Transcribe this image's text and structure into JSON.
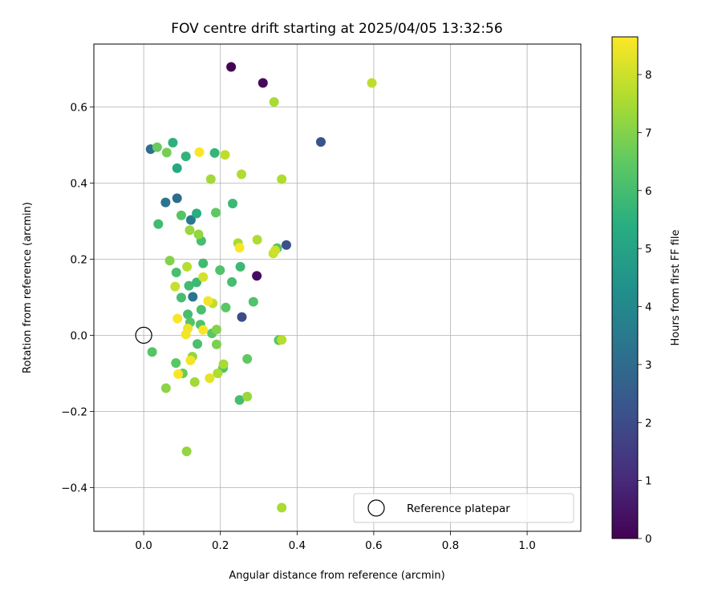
{
  "chart_data": {
    "type": "scatter",
    "title": "FOV centre drift starting at 2025/04/05 13:32:56",
    "xlabel": "Angular distance from reference (arcmin)",
    "ylabel": "Rotation from reference (arcmin)",
    "xlim": [
      -0.13,
      1.14
    ],
    "ylim": [
      -0.515,
      0.765
    ],
    "xticks": [
      0.0,
      0.2,
      0.4,
      0.6,
      0.8,
      1.0
    ],
    "xtick_labels": [
      "0.0",
      "0.2",
      "0.4",
      "0.6",
      "0.8",
      "1.0"
    ],
    "yticks": [
      -0.4,
      -0.2,
      0.0,
      0.2,
      0.4,
      0.6
    ],
    "ytick_labels": [
      "−0.4",
      "−0.2",
      "0.0",
      "0.2",
      "0.4",
      "0.6"
    ],
    "grid": true,
    "colorbar": {
      "label": "Hours from first FF file",
      "colormap": "viridis",
      "range": [
        0,
        8.65
      ],
      "ticks": [
        0,
        1,
        2,
        3,
        4,
        5,
        6,
        7,
        8
      ],
      "tick_labels": [
        "0",
        "1",
        "2",
        "3",
        "4",
        "5",
        "6",
        "7",
        "8"
      ]
    },
    "legend": {
      "placement": "lower-right",
      "entries": [
        {
          "label": "Reference platepar",
          "marker": "hollow-circle"
        }
      ]
    },
    "reference_point": {
      "x": 0.0,
      "y": 0.0
    },
    "points": [
      {
        "x": 0.228,
        "y": 0.705,
        "hours": 0.0
      },
      {
        "x": 0.311,
        "y": 0.663,
        "hours": 0.2
      },
      {
        "x": 0.295,
        "y": 0.156,
        "hours": 0.3
      },
      {
        "x": 0.462,
        "y": 0.508,
        "hours": 2.2
      },
      {
        "x": 0.372,
        "y": 0.237,
        "hours": 2.1
      },
      {
        "x": 0.256,
        "y": 0.048,
        "hours": 2.0
      },
      {
        "x": 0.018,
        "y": 0.489,
        "hours": 3.1
      },
      {
        "x": 0.057,
        "y": 0.349,
        "hours": 3.3
      },
      {
        "x": 0.087,
        "y": 0.36,
        "hours": 3.0
      },
      {
        "x": 0.123,
        "y": 0.303,
        "hours": 3.5
      },
      {
        "x": 0.128,
        "y": 0.101,
        "hours": 3.4
      },
      {
        "x": 0.076,
        "y": 0.506,
        "hours": 5.5
      },
      {
        "x": 0.087,
        "y": 0.439,
        "hours": 5.2
      },
      {
        "x": 0.11,
        "y": 0.47,
        "hours": 5.6
      },
      {
        "x": 0.185,
        "y": 0.479,
        "hours": 5.7
      },
      {
        "x": 0.138,
        "y": 0.32,
        "hours": 5.4
      },
      {
        "x": 0.232,
        "y": 0.346,
        "hours": 5.8
      },
      {
        "x": 0.038,
        "y": 0.292,
        "hours": 5.9
      },
      {
        "x": 0.098,
        "y": 0.315,
        "hours": 6.3
      },
      {
        "x": 0.188,
        "y": 0.322,
        "hours": 6.5
      },
      {
        "x": 0.15,
        "y": 0.248,
        "hours": 6.0
      },
      {
        "x": 0.155,
        "y": 0.189,
        "hours": 5.9
      },
      {
        "x": 0.252,
        "y": 0.18,
        "hours": 5.8
      },
      {
        "x": 0.199,
        "y": 0.171,
        "hours": 6.2
      },
      {
        "x": 0.138,
        "y": 0.139,
        "hours": 5.8
      },
      {
        "x": 0.118,
        "y": 0.13,
        "hours": 5.9
      },
      {
        "x": 0.23,
        "y": 0.14,
        "hours": 6.0
      },
      {
        "x": 0.085,
        "y": 0.165,
        "hours": 6.1
      },
      {
        "x": 0.098,
        "y": 0.099,
        "hours": 6.0
      },
      {
        "x": 0.15,
        "y": 0.067,
        "hours": 6.1
      },
      {
        "x": 0.115,
        "y": 0.055,
        "hours": 6.0
      },
      {
        "x": 0.286,
        "y": 0.088,
        "hours": 6.2
      },
      {
        "x": 0.214,
        "y": 0.073,
        "hours": 6.4
      },
      {
        "x": 0.121,
        "y": 0.034,
        "hours": 6.3
      },
      {
        "x": 0.148,
        "y": 0.028,
        "hours": 6.2
      },
      {
        "x": 0.178,
        "y": 0.005,
        "hours": 6.4
      },
      {
        "x": 0.14,
        "y": -0.023,
        "hours": 6.1
      },
      {
        "x": 0.022,
        "y": -0.044,
        "hours": 6.3
      },
      {
        "x": 0.084,
        "y": -0.073,
        "hours": 6.4
      },
      {
        "x": 0.102,
        "y": -0.1,
        "hours": 6.6
      },
      {
        "x": 0.207,
        "y": -0.086,
        "hours": 6.2
      },
      {
        "x": 0.25,
        "y": -0.17,
        "hours": 6.0
      },
      {
        "x": 0.27,
        "y": -0.062,
        "hours": 6.5
      },
      {
        "x": 0.352,
        "y": -0.013,
        "hours": 6.4
      },
      {
        "x": 0.348,
        "y": 0.229,
        "hours": 6.3
      },
      {
        "x": 0.035,
        "y": 0.494,
        "hours": 6.6
      },
      {
        "x": 0.06,
        "y": 0.48,
        "hours": 6.8
      },
      {
        "x": 0.068,
        "y": 0.196,
        "hours": 7.0
      },
      {
        "x": 0.12,
        "y": 0.276,
        "hours": 7.3
      },
      {
        "x": 0.143,
        "y": 0.265,
        "hours": 7.2
      },
      {
        "x": 0.175,
        "y": 0.41,
        "hours": 7.4
      },
      {
        "x": 0.255,
        "y": 0.423,
        "hours": 7.6
      },
      {
        "x": 0.36,
        "y": 0.41,
        "hours": 7.6
      },
      {
        "x": 0.34,
        "y": 0.613,
        "hours": 7.5
      },
      {
        "x": 0.595,
        "y": 0.663,
        "hours": 7.8
      },
      {
        "x": 0.212,
        "y": 0.474,
        "hours": 7.8
      },
      {
        "x": 0.246,
        "y": 0.242,
        "hours": 7.5
      },
      {
        "x": 0.296,
        "y": 0.251,
        "hours": 7.6
      },
      {
        "x": 0.338,
        "y": 0.215,
        "hours": 7.9
      },
      {
        "x": 0.343,
        "y": 0.223,
        "hours": 8.0
      },
      {
        "x": 0.113,
        "y": 0.18,
        "hours": 7.7
      },
      {
        "x": 0.082,
        "y": 0.128,
        "hours": 7.9
      },
      {
        "x": 0.155,
        "y": 0.153,
        "hours": 8.1
      },
      {
        "x": 0.18,
        "y": 0.084,
        "hours": 7.8
      },
      {
        "x": 0.19,
        "y": 0.015,
        "hours": 7.0
      },
      {
        "x": 0.19,
        "y": -0.024,
        "hours": 6.9
      },
      {
        "x": 0.127,
        "y": -0.056,
        "hours": 7.2
      },
      {
        "x": 0.058,
        "y": -0.139,
        "hours": 7.1
      },
      {
        "x": 0.133,
        "y": -0.123,
        "hours": 7.4
      },
      {
        "x": 0.193,
        "y": -0.1,
        "hours": 7.6
      },
      {
        "x": 0.208,
        "y": -0.076,
        "hours": 7.5
      },
      {
        "x": 0.27,
        "y": -0.161,
        "hours": 7.3
      },
      {
        "x": 0.36,
        "y": -0.012,
        "hours": 7.7
      },
      {
        "x": 0.112,
        "y": -0.305,
        "hours": 7.2
      },
      {
        "x": 0.36,
        "y": -0.453,
        "hours": 7.5
      },
      {
        "x": 0.145,
        "y": 0.481,
        "hours": 8.6
      },
      {
        "x": 0.25,
        "y": 0.23,
        "hours": 8.6
      },
      {
        "x": 0.168,
        "y": 0.09,
        "hours": 8.5
      },
      {
        "x": 0.088,
        "y": 0.044,
        "hours": 8.6
      },
      {
        "x": 0.115,
        "y": 0.018,
        "hours": 8.4
      },
      {
        "x": 0.11,
        "y": 0.002,
        "hours": 8.5
      },
      {
        "x": 0.155,
        "y": 0.014,
        "hours": 8.6
      },
      {
        "x": 0.122,
        "y": -0.066,
        "hours": 8.5
      },
      {
        "x": 0.09,
        "y": -0.102,
        "hours": 8.6
      },
      {
        "x": 0.172,
        "y": -0.113,
        "hours": 8.3
      }
    ]
  }
}
